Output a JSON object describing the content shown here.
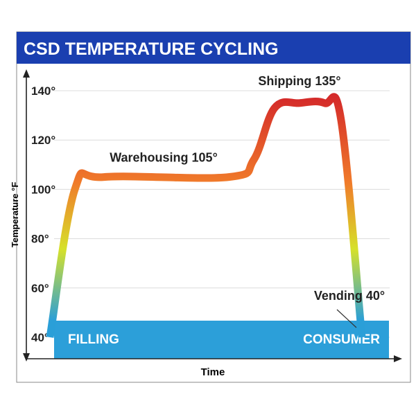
{
  "header": {
    "title": "CSD TEMPERATURE CYCLING",
    "background_color": "#1a3fb0",
    "text_color": "#ffffff"
  },
  "chart_data": {
    "type": "line",
    "title": "CSD TEMPERATURE CYCLING",
    "xlabel": "Time",
    "ylabel": "Temperature °F",
    "yticks": [
      40,
      60,
      80,
      100,
      120,
      140
    ],
    "ytick_labels": [
      "40°",
      "60°",
      "80°",
      "100°",
      "120°",
      "140°"
    ],
    "ylim": [
      38,
      145
    ],
    "grid": true,
    "x_show_ticks": false,
    "series": [
      {
        "points": [
          {
            "x": 0.12,
            "y": 40
          },
          {
            "x": 0.18,
            "y": 100
          },
          {
            "x": 0.25,
            "y": 105
          },
          {
            "x": 0.55,
            "y": 105
          },
          {
            "x": 0.61,
            "y": 112
          },
          {
            "x": 0.66,
            "y": 133
          },
          {
            "x": 0.72,
            "y": 135
          },
          {
            "x": 0.78,
            "y": 135
          },
          {
            "x": 0.82,
            "y": 128
          },
          {
            "x": 0.87,
            "y": 40
          }
        ]
      }
    ],
    "gradient_colors": [
      "#2a9fd8",
      "#d6e12a",
      "#f07a2a",
      "#d42a2a"
    ],
    "annotations": [
      {
        "label": "Warehousing 105°",
        "x": 0.4,
        "y": 105
      },
      {
        "label": "Shipping 135°",
        "x": 0.75,
        "y": 135
      },
      {
        "label": "Vending 40°",
        "x": 0.86,
        "y": 40
      }
    ],
    "base_band": {
      "left_label": "FILLING",
      "right_label": "CONSUMER",
      "color": "#2c9fd9",
      "text_color": "#ffffff"
    }
  }
}
